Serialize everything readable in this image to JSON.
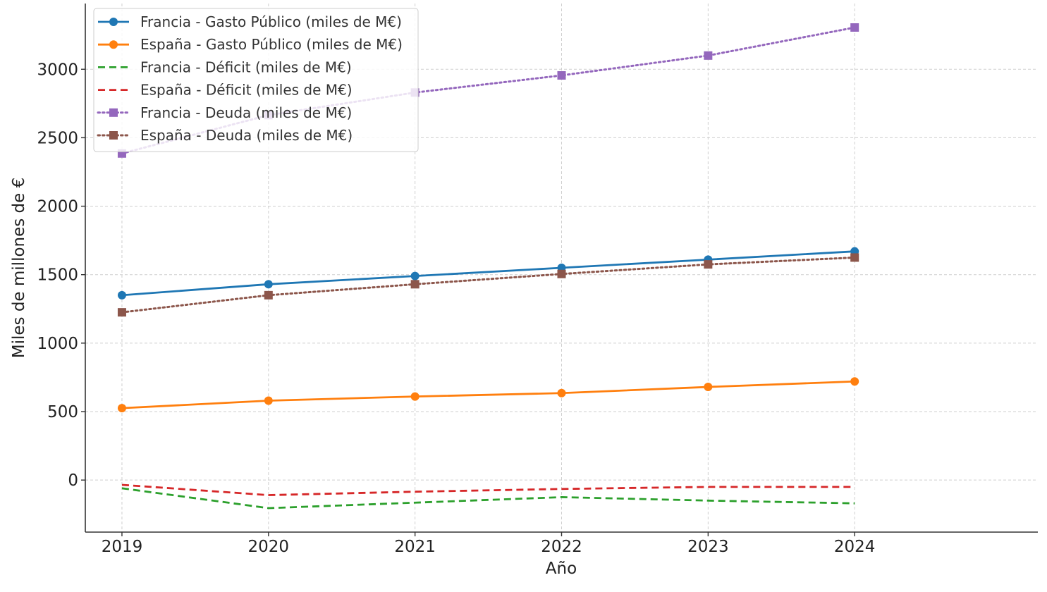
{
  "chart_data": {
    "type": "line",
    "title": "",
    "xlabel": "Año",
    "ylabel": "Miles de millones de €",
    "x": [
      2019,
      2020,
      2021,
      2022,
      2023,
      2024
    ],
    "x_tick_labels": [
      "2019",
      "2020",
      "2021",
      "2022",
      "2023",
      "2024"
    ],
    "y_ticks": [
      0,
      500,
      1000,
      1500,
      2000,
      2500,
      3000
    ],
    "y_tick_labels": [
      "0",
      "500",
      "1000",
      "1500",
      "2000",
      "2500",
      "3000"
    ],
    "ylim": [
      -380,
      3480
    ],
    "xlim": [
      2018.75,
      2025.25
    ],
    "grid": true,
    "legend_position": "top-left",
    "series": [
      {
        "name": "Francia - Gasto Público (miles de M€)",
        "values": [
          1350,
          1430,
          1490,
          1550,
          1610,
          1670
        ],
        "color": "#1f77b4",
        "line_style": "solid",
        "marker": "circle"
      },
      {
        "name": "España - Gasto Público (miles de M€)",
        "values": [
          525,
          580,
          610,
          635,
          680,
          720
        ],
        "color": "#ff7f0e",
        "line_style": "solid",
        "marker": "circle"
      },
      {
        "name": "Francia - Déficit (miles de M€)",
        "values": [
          -60,
          -205,
          -165,
          -125,
          -150,
          -170
        ],
        "color": "#2ca02c",
        "line_style": "dashed",
        "marker": "none"
      },
      {
        "name": "España - Déficit (miles de M€)",
        "values": [
          -35,
          -110,
          -85,
          -65,
          -50,
          -50
        ],
        "color": "#d62728",
        "line_style": "dashed",
        "marker": "none"
      },
      {
        "name": "Francia - Deuda (miles de M€)",
        "values": [
          2385,
          2665,
          2830,
          2955,
          3100,
          3305
        ],
        "color": "#9467bd",
        "line_style": "dotted",
        "marker": "square"
      },
      {
        "name": "España - Deuda (miles de M€)",
        "values": [
          1225,
          1350,
          1430,
          1505,
          1575,
          1625
        ],
        "color": "#8c564b",
        "line_style": "dotted",
        "marker": "square"
      }
    ]
  }
}
